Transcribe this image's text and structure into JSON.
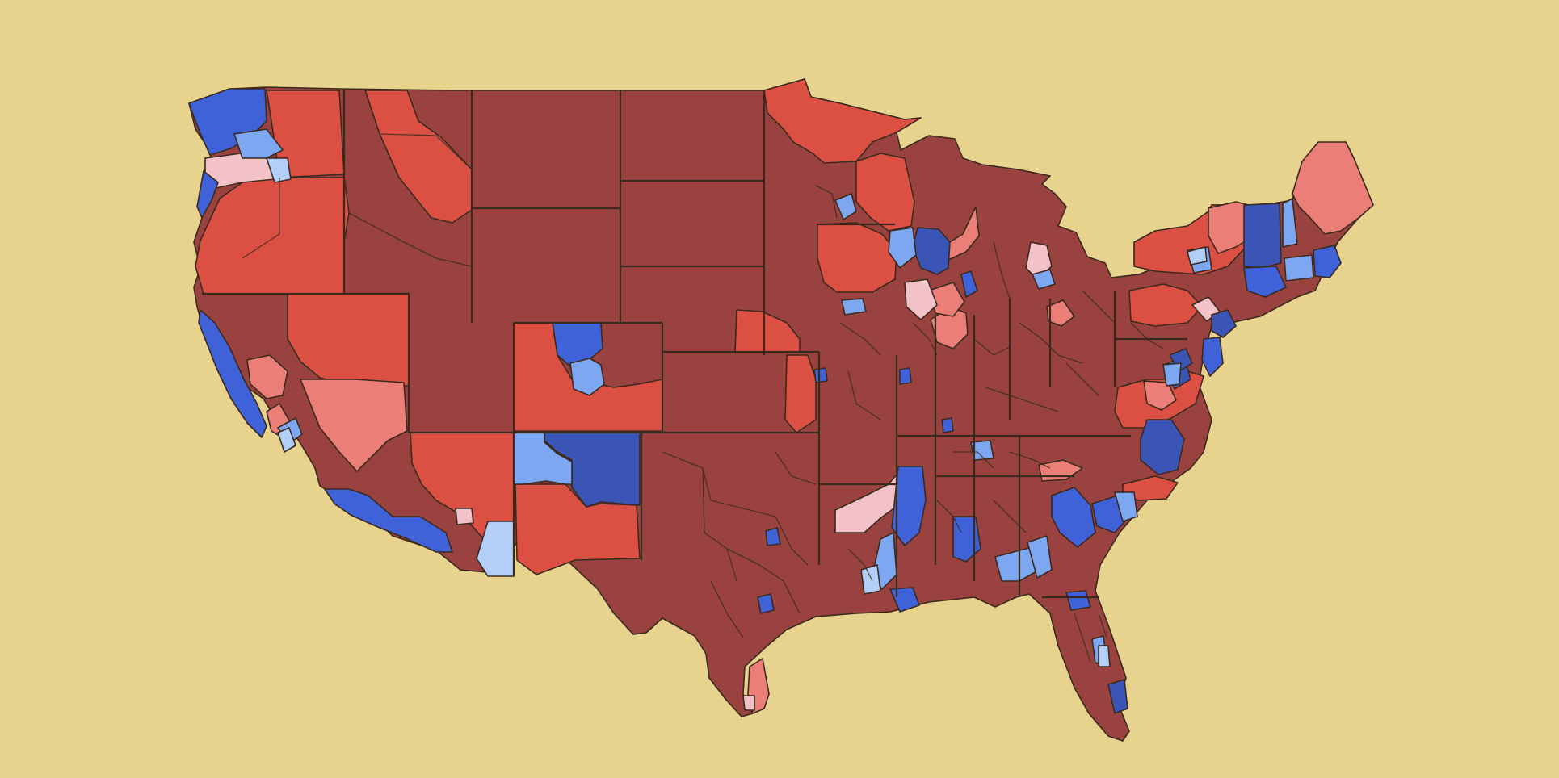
{
  "palette": {
    "background": "#e7d28e",
    "safe_r": "#9a4240",
    "likely_r": "#dc5044",
    "lean_r": "#eb7f78",
    "tilt_r": "#f3c2c8",
    "safe_d": "#3b55b6",
    "likely_d": "#3f62d8",
    "lean_d": "#7ea7f2",
    "tilt_d": "#b3cef7",
    "border": "#3a2a1e"
  },
  "map": {
    "type": "choropleth",
    "region": "contiguous-united-states",
    "unit": "congressional-districts",
    "legend": "none",
    "labels": "none",
    "rating_levels": [
      "safe_r",
      "likely_r",
      "lean_r",
      "tilt_r",
      "tilt_d",
      "lean_d",
      "likely_d",
      "safe_d"
    ]
  }
}
